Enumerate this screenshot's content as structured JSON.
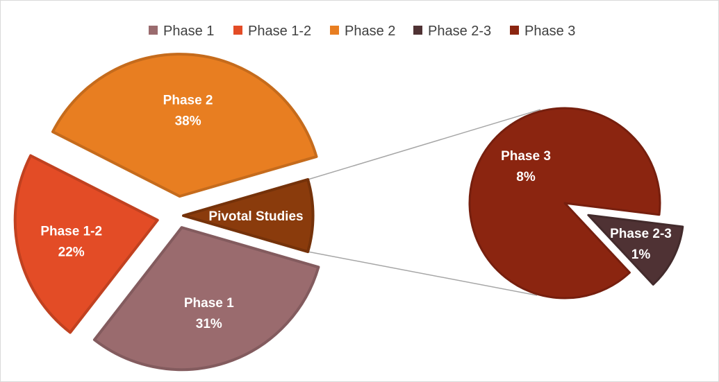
{
  "chart_data": {
    "type": "pie",
    "subtype": "pie-of-pie",
    "legend_position": "top",
    "main_pie": {
      "slices": [
        {
          "label": "Phase 1",
          "value": 31,
          "value_label": "31%",
          "color": "#9a6b6e"
        },
        {
          "label": "Phase 1-2",
          "value": 22,
          "value_label": "22%",
          "color": "#e34c26"
        },
        {
          "label": "Phase 2",
          "value": 38,
          "value_label": "38%",
          "color": "#e87e21"
        },
        {
          "label": "Pivotal Studies",
          "value": 9,
          "value_label": "",
          "color": "#8a3b0c"
        }
      ]
    },
    "secondary_pie": {
      "slices": [
        {
          "label": "Phase 3",
          "value": 8,
          "value_label": "8%",
          "color": "#8b2510"
        },
        {
          "label": "Phase 2-3",
          "value": 1,
          "value_label": "1%",
          "color": "#4f3234"
        }
      ]
    },
    "legend": [
      {
        "name": "Phase 1",
        "color": "#9a6b6e"
      },
      {
        "name": "Phase 1-2",
        "color": "#e34c26"
      },
      {
        "name": "Phase 2",
        "color": "#e87e21"
      },
      {
        "name": "Phase 2-3",
        "color": "#4f3234"
      },
      {
        "name": "Phase 3",
        "color": "#8b2510"
      }
    ]
  }
}
